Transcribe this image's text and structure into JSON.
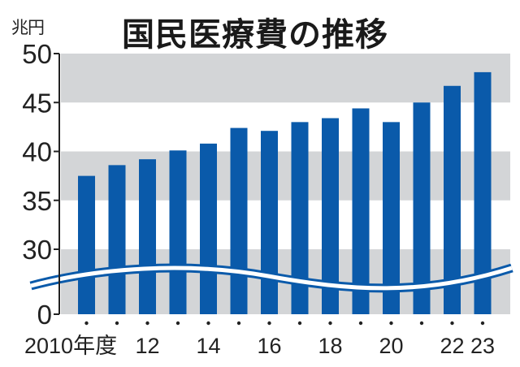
{
  "chart_data": {
    "type": "bar",
    "title": "国民医療費の推移",
    "ylabel": "兆円",
    "xlabel": "",
    "x_suffix_label": "年度",
    "categories": [
      "2010",
      "2011",
      "2012",
      "2013",
      "2014",
      "2015",
      "2016",
      "2017",
      "2018",
      "2019",
      "2020",
      "2021",
      "2022",
      "2023"
    ],
    "values": [
      37.5,
      38.6,
      39.2,
      40.1,
      40.8,
      42.4,
      42.1,
      43.0,
      43.4,
      44.4,
      43.0,
      45.0,
      46.7,
      48.1
    ],
    "y_ticks": [
      0,
      30,
      35,
      40,
      45,
      50
    ],
    "ylim": [
      0,
      50
    ],
    "axis_break": {
      "between": [
        0,
        30
      ],
      "style": "wavy"
    },
    "x_tick_labels": [
      {
        "index": 0,
        "label": "2010年度"
      },
      {
        "index": 2,
        "label": "12"
      },
      {
        "index": 4,
        "label": "14"
      },
      {
        "index": 6,
        "label": "16"
      },
      {
        "index": 8,
        "label": "18"
      },
      {
        "index": 10,
        "label": "20"
      },
      {
        "index": 12,
        "label": "22"
      },
      {
        "index": 13,
        "label": "23"
      }
    ],
    "grid": "alternating horizontal bands",
    "legend": null,
    "colors": {
      "bar": "#0a5aaa",
      "band": "#d3d5d7",
      "background": "#ffffff",
      "axis": "#222222"
    }
  },
  "header": {
    "unit_label": "兆円",
    "title": "国民医療費の推移"
  }
}
